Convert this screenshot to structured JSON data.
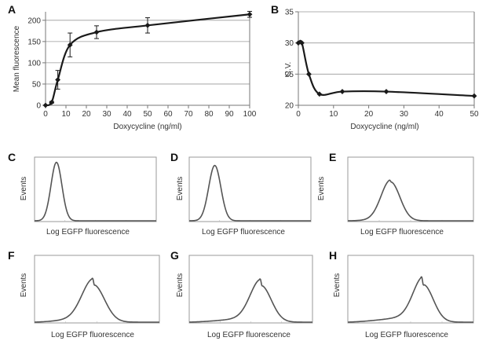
{
  "chart_data": [
    {
      "panel": "A",
      "type": "line",
      "title": "",
      "xlabel": "Doxycycline (ng/ml)",
      "ylabel": "Mean fluorescence",
      "xlim": [
        0,
        100
      ],
      "ylim": [
        0,
        220
      ],
      "xticks": [
        0,
        10,
        20,
        30,
        40,
        50,
        60,
        70,
        80,
        90,
        100
      ],
      "yticks": [
        0,
        50,
        100,
        150,
        200
      ],
      "grid": "horizontal",
      "x": [
        0,
        3,
        6,
        12,
        25,
        50,
        100
      ],
      "y": [
        0,
        7,
        60,
        142,
        172,
        188,
        214
      ],
      "error": [
        0,
        2,
        22,
        28,
        15,
        18,
        7
      ]
    },
    {
      "panel": "B",
      "type": "line",
      "title": "",
      "xlabel": "Doxycycline (ng/ml)",
      "ylabel": "C.V.",
      "xlim": [
        0,
        50
      ],
      "ylim": [
        20,
        35
      ],
      "xticks": [
        0,
        10,
        20,
        30,
        40,
        50
      ],
      "yticks": [
        20,
        25,
        30,
        35
      ],
      "grid": "horizontal",
      "x": [
        0,
        1,
        3,
        6,
        12.5,
        25,
        50
      ],
      "y": [
        30,
        30,
        25,
        21.8,
        22.2,
        22.2,
        21.5
      ]
    },
    {
      "panel": "C",
      "type": "line",
      "xlabel": "Log EGFP fluorescence",
      "ylabel": "Events",
      "peak_position": 0.18,
      "peak_height": 0.93,
      "peak_width": 0.045,
      "left_shoulder": 0.0
    },
    {
      "panel": "D",
      "type": "line",
      "xlabel": "Log EGFP fluorescence",
      "ylabel": "Events",
      "peak_position": 0.21,
      "peak_height": 0.88,
      "peak_width": 0.05,
      "left_shoulder": 0.0
    },
    {
      "panel": "E",
      "type": "line",
      "xlabel": "Log EGFP fluorescence",
      "ylabel": "Events",
      "peak_position": 0.34,
      "peak_height": 0.62,
      "peak_width": 0.075,
      "left_shoulder": 0.02
    },
    {
      "panel": "F",
      "type": "line",
      "xlabel": "Log EGFP fluorescence",
      "ylabel": "Events",
      "peak_position": 0.47,
      "peak_height": 0.57,
      "peak_width": 0.09,
      "left_shoulder": 0.06
    },
    {
      "panel": "G",
      "type": "line",
      "xlabel": "Log EGFP fluorescence",
      "ylabel": "Events",
      "peak_position": 0.58,
      "peak_height": 0.56,
      "peak_width": 0.085,
      "left_shoulder": 0.06
    },
    {
      "panel": "H",
      "type": "line",
      "xlabel": "Log EGFP fluorescence",
      "ylabel": "Events",
      "peak_position": 0.6,
      "peak_height": 0.57,
      "peak_width": 0.08,
      "left_shoulder": 0.08
    }
  ]
}
